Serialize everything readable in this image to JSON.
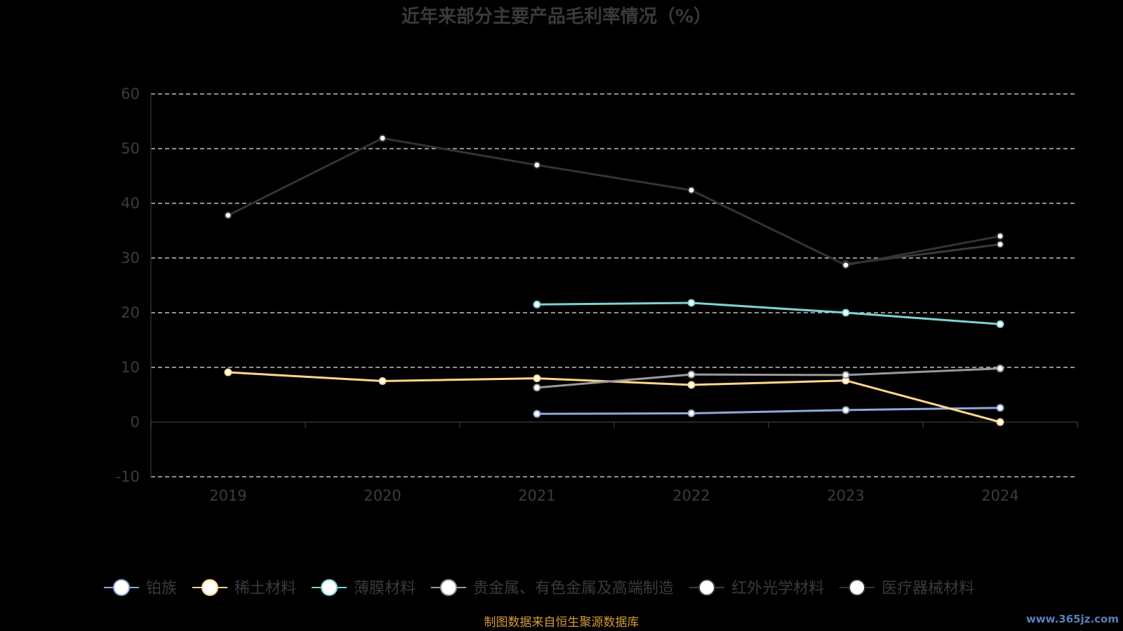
{
  "chart_data": {
    "type": "line",
    "title": "近年来部分主要产品毛利率情况（%）",
    "xlabel": "",
    "ylabel": "",
    "categories": [
      "2019",
      "2020",
      "2021",
      "2022",
      "2023",
      "2024"
    ],
    "ylim": [
      -10,
      60
    ],
    "yticks": [
      -10,
      0,
      10,
      20,
      30,
      40,
      50,
      60
    ],
    "grid": true,
    "legend_position": "bottom",
    "series": [
      {
        "name": "铂族",
        "color": "#8fa8d8",
        "values": [
          null,
          null,
          1.5,
          1.6,
          2.2,
          2.6
        ]
      },
      {
        "name": "稀土材料",
        "color": "#ffd88a",
        "values": [
          9.1,
          7.5,
          8.0,
          6.8,
          7.6,
          0.0
        ]
      },
      {
        "name": "薄膜材料",
        "color": "#7fd3d3",
        "values": [
          null,
          null,
          21.5,
          21.8,
          20.0,
          17.9
        ]
      },
      {
        "name": "贵金属、有色金属及高端制造",
        "color": "#9a9a9a",
        "values": [
          null,
          null,
          6.3,
          8.7,
          8.6,
          9.8
        ]
      },
      {
        "name": "红外光学材料",
        "color": "#3a3a3a",
        "values": [
          null,
          null,
          null,
          null,
          28.9,
          32.5
        ]
      },
      {
        "name": "医疗器械材料",
        "color": "#333333",
        "values": [
          37.8,
          51.9,
          47.0,
          42.4,
          28.7,
          34.0
        ]
      }
    ]
  },
  "footer": {
    "source": "制图数据来自恒生聚源数据库"
  },
  "watermark": {
    "text": "www.365jz.com"
  }
}
